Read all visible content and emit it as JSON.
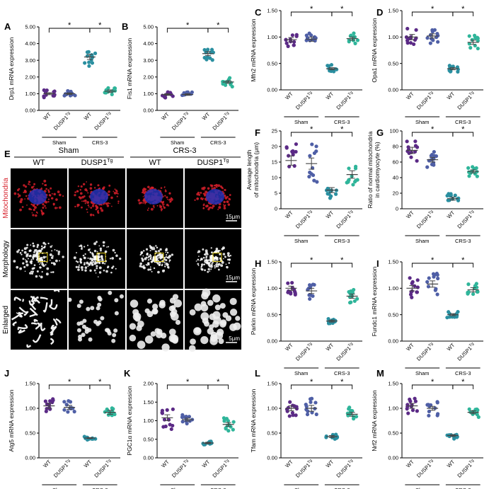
{
  "colors": {
    "wt_sham": "#5b2a86",
    "dusp_sham": "#4f5fa6",
    "wt_crs": "#2a8fa0",
    "dusp_crs": "#2fb59a",
    "mito_red": "#d61f2a",
    "nucleus_blue": "#2433b8",
    "scale_white": "#ffffff",
    "box_yellow": "#e9d21b"
  },
  "categories": [
    "WT",
    "DUSP1",
    "WT",
    "DUSP1"
  ],
  "category_superscript": "Tg",
  "groups": [
    "Sham",
    "CRS-3"
  ],
  "significance": "*",
  "micro": {
    "letter": "E",
    "headers": {
      "sham": "Sham",
      "crs": "CRS-3"
    },
    "columns": [
      "WT",
      "DUSP1",
      "WT",
      "DUSP1"
    ],
    "superscript": "Tg",
    "rows": [
      "Mitochondria",
      "Morphology",
      "Enlarged"
    ],
    "scale_bars": [
      "15μm",
      "15μm",
      "5μm"
    ]
  },
  "chart_data": [
    {
      "letter": "A",
      "type": "scatter",
      "ylabel": "Drp1 mRNA expression",
      "ylim": [
        0,
        5
      ],
      "yticks": [
        "0.00",
        "1.00",
        "2.00",
        "3.00",
        "4.00",
        "5.00"
      ],
      "series": [
        {
          "mean": 1.0,
          "sem": 0.06
        },
        {
          "mean": 1.0,
          "sem": 0.05
        },
        {
          "mean": 3.2,
          "sem": 0.15
        },
        {
          "mean": 1.15,
          "sem": 0.08
        }
      ],
      "brackets": [
        [
          0,
          2
        ],
        [
          2,
          3
        ]
      ]
    },
    {
      "letter": "B",
      "type": "scatter",
      "ylabel": "Fis1 mRNA expression",
      "ylim": [
        0,
        5
      ],
      "yticks": [
        "0.00",
        "1.00",
        "2.00",
        "3.00",
        "4.00",
        "5.00"
      ],
      "series": [
        {
          "mean": 0.95,
          "sem": 0.05
        },
        {
          "mean": 0.95,
          "sem": 0.05
        },
        {
          "mean": 3.4,
          "sem": 0.12
        },
        {
          "mean": 1.7,
          "sem": 0.08
        }
      ],
      "brackets": [
        [
          0,
          2
        ],
        [
          2,
          3
        ]
      ]
    },
    {
      "letter": "C",
      "type": "scatter",
      "ylabel": "Mfn2 mRNA expression",
      "ylim": [
        0,
        1.5
      ],
      "yticks": [
        "0.00",
        "0.50",
        "1.00",
        "1.50"
      ],
      "series": [
        {
          "mean": 0.95,
          "sem": 0.04
        },
        {
          "mean": 0.96,
          "sem": 0.04
        },
        {
          "mean": 0.4,
          "sem": 0.02
        },
        {
          "mean": 0.97,
          "sem": 0.03
        }
      ],
      "brackets": [
        [
          0,
          2
        ],
        [
          2,
          3
        ]
      ]
    },
    {
      "letter": "D",
      "type": "scatter",
      "ylabel": "Opa1 mRNA expression",
      "ylim": [
        0,
        1.5
      ],
      "yticks": [
        "0.00",
        "0.50",
        "1.00",
        "1.50"
      ],
      "series": [
        {
          "mean": 1.0,
          "sem": 0.05
        },
        {
          "mean": 1.02,
          "sem": 0.04
        },
        {
          "mean": 0.4,
          "sem": 0.02
        },
        {
          "mean": 0.9,
          "sem": 0.04
        }
      ],
      "brackets": [
        [
          0,
          2
        ],
        [
          2,
          3
        ]
      ]
    },
    {
      "letter": "F",
      "type": "scatter",
      "ylabel": "Average length of mitochondria (μm)",
      "ylim": [
        0,
        25
      ],
      "yticks": [
        "0",
        "5",
        "10",
        "15",
        "20",
        "25"
      ],
      "series": [
        {
          "mean": 15.5,
          "sem": 1.5
        },
        {
          "mean": 14.5,
          "sem": 1.8
        },
        {
          "mean": 6.0,
          "sem": 0.8
        },
        {
          "mean": 11.0,
          "sem": 1.2
        }
      ],
      "brackets": [
        [
          0,
          2
        ],
        [
          2,
          3
        ]
      ]
    },
    {
      "letter": "G",
      "type": "scatter",
      "ylabel": "Ratio of normal mitochondria in cardiomyocyte (%)",
      "ylim": [
        0,
        100
      ],
      "yticks": [
        "0",
        "20",
        "40",
        "60",
        "80",
        "100"
      ],
      "series": [
        {
          "mean": 75,
          "sem": 4
        },
        {
          "mean": 63,
          "sem": 3
        },
        {
          "mean": 13,
          "sem": 2
        },
        {
          "mean": 48,
          "sem": 2
        }
      ],
      "brackets": [
        [
          0,
          2
        ],
        [
          2,
          3
        ]
      ]
    },
    {
      "letter": "H",
      "type": "scatter",
      "ylabel": "Parkin mRNA expression",
      "ylim": [
        0,
        1.5
      ],
      "yticks": [
        "0.00",
        "0.50",
        "1.00",
        "1.50"
      ],
      "series": [
        {
          "mean": 1.0,
          "sem": 0.04
        },
        {
          "mean": 0.95,
          "sem": 0.05
        },
        {
          "mean": 0.38,
          "sem": 0.02
        },
        {
          "mean": 0.85,
          "sem": 0.04
        }
      ],
      "brackets": [
        [
          0,
          2
        ],
        [
          2,
          3
        ]
      ]
    },
    {
      "letter": "I",
      "type": "scatter",
      "ylabel": "Fundc1 mRNA expression",
      "ylim": [
        0,
        1.5
      ],
      "yticks": [
        "0.00",
        "0.50",
        "1.00",
        "1.50"
      ],
      "series": [
        {
          "mean": 1.0,
          "sem": 0.05
        },
        {
          "mean": 1.08,
          "sem": 0.06
        },
        {
          "mean": 0.5,
          "sem": 0.02
        },
        {
          "mean": 0.97,
          "sem": 0.04
        }
      ],
      "brackets": [
        [
          0,
          2
        ],
        [
          2,
          3
        ]
      ]
    },
    {
      "letter": "J",
      "type": "scatter",
      "ylabel": "Atg5 mRNA expression",
      "ylim": [
        0,
        1.5
      ],
      "yticks": [
        "0.00",
        "0.50",
        "1.00",
        "1.50"
      ],
      "series": [
        {
          "mean": 1.05,
          "sem": 0.05
        },
        {
          "mean": 1.02,
          "sem": 0.04
        },
        {
          "mean": 0.4,
          "sem": 0.01
        },
        {
          "mean": 0.92,
          "sem": 0.04
        }
      ],
      "brackets": [
        [
          0,
          2
        ],
        [
          2,
          3
        ]
      ]
    },
    {
      "letter": "K",
      "type": "scatter",
      "ylabel": "PGC1α mRNA expression",
      "ylim": [
        0,
        2
      ],
      "yticks": [
        "0.00",
        "0.50",
        "1.00",
        "1.50",
        "2.00"
      ],
      "series": [
        {
          "mean": 1.08,
          "sem": 0.08
        },
        {
          "mean": 1.03,
          "sem": 0.04
        },
        {
          "mean": 0.4,
          "sem": 0.02
        },
        {
          "mean": 0.9,
          "sem": 0.05
        }
      ],
      "brackets": [
        [
          0,
          2
        ],
        [
          2,
          3
        ]
      ]
    },
    {
      "letter": "L",
      "type": "scatter",
      "ylabel": "Tfam mRNA expression",
      "ylim": [
        0,
        1.5
      ],
      "yticks": [
        "0.00",
        "0.50",
        "1.00",
        "1.50"
      ],
      "series": [
        {
          "mean": 1.0,
          "sem": 0.05
        },
        {
          "mean": 1.0,
          "sem": 0.06
        },
        {
          "mean": 0.43,
          "sem": 0.02
        },
        {
          "mean": 0.88,
          "sem": 0.04
        }
      ],
      "brackets": [
        [
          0,
          2
        ],
        [
          2,
          3
        ]
      ]
    },
    {
      "letter": "M",
      "type": "scatter",
      "ylabel": "Nrf2 mRNA expression",
      "ylim": [
        0,
        1.5
      ],
      "yticks": [
        "0.00",
        "0.50",
        "1.00",
        "1.50"
      ],
      "series": [
        {
          "mean": 1.05,
          "sem": 0.05
        },
        {
          "mean": 1.0,
          "sem": 0.04
        },
        {
          "mean": 0.45,
          "sem": 0.02
        },
        {
          "mean": 0.92,
          "sem": 0.03
        }
      ],
      "brackets": [
        [
          0,
          2
        ],
        [
          2,
          3
        ]
      ]
    }
  ]
}
